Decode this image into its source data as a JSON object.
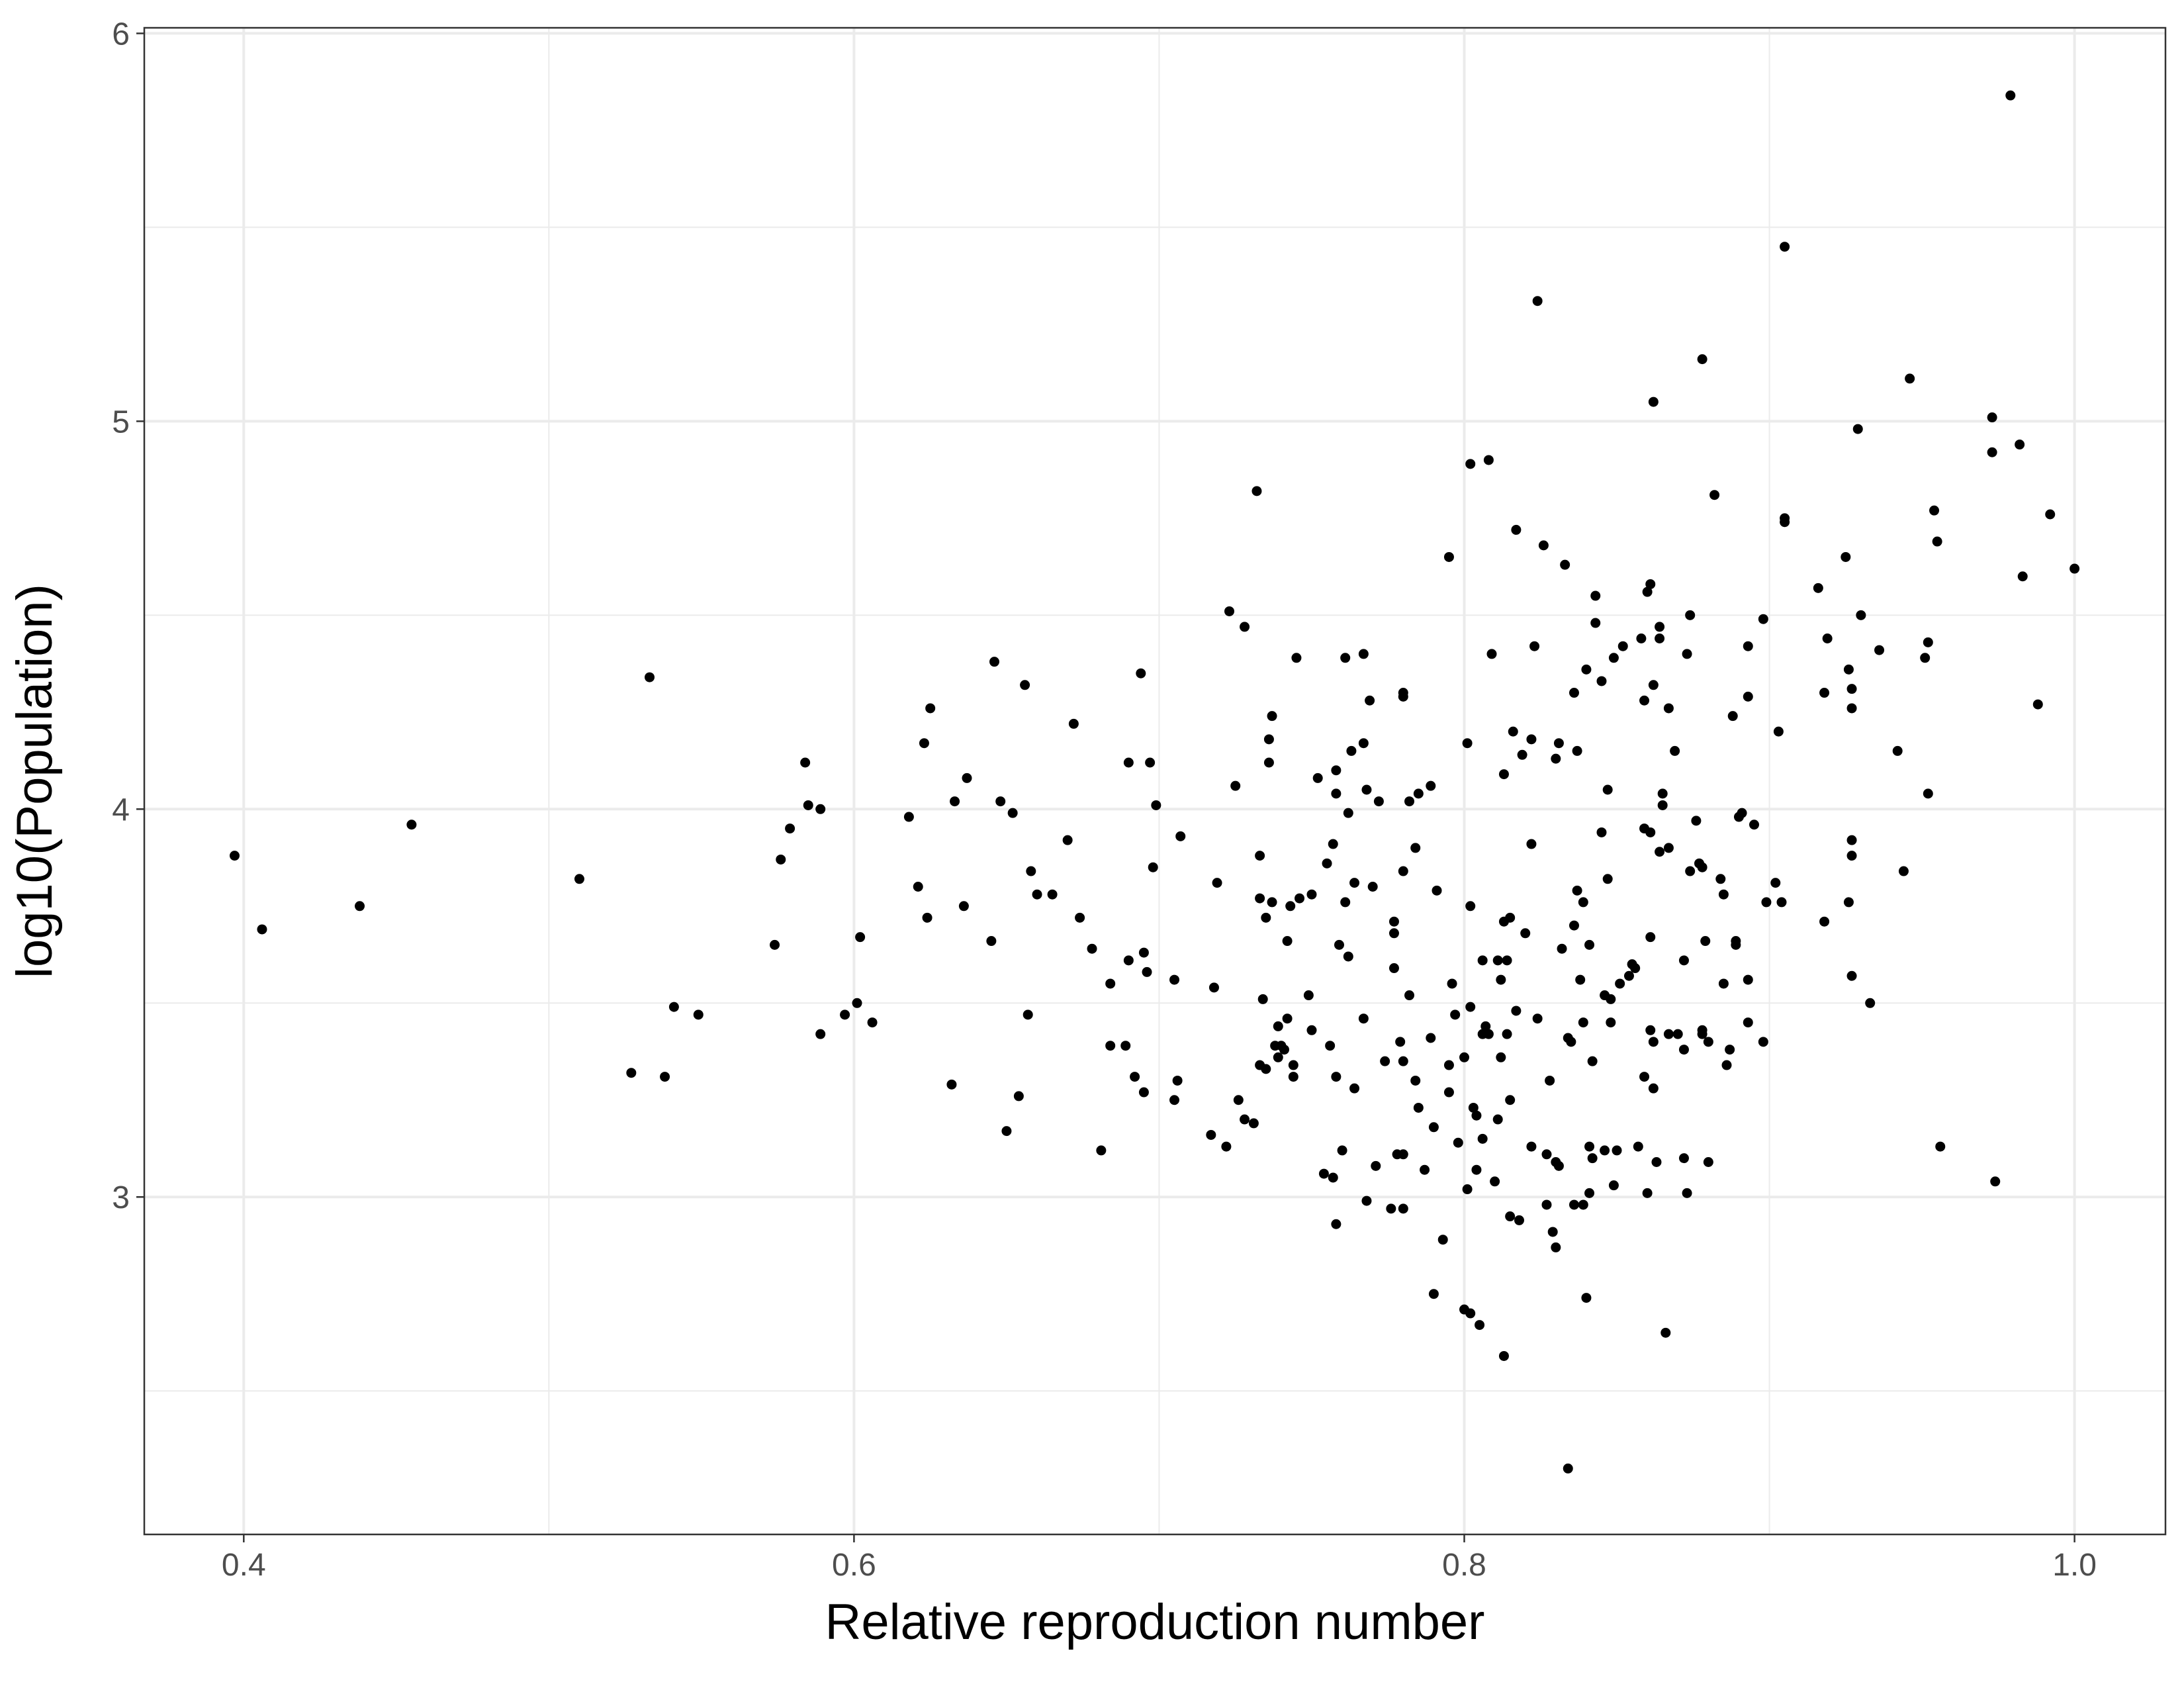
{
  "chart_data": {
    "type": "scatter",
    "x_label": "Relative reproduction number",
    "y_label": "log10(Population)",
    "color": "#000000",
    "grid": true,
    "xlim": [
      0.3674,
      1.0298
    ],
    "ylim": [
      2.13,
      6.0144
    ],
    "xticks": [
      0.4,
      0.6,
      0.8,
      {
        "value": 1,
        "label": "1.0"
      }
    ],
    "yticks": [
      3,
      4,
      5,
      6
    ],
    "x_minor_grid": [
      0.5,
      0.7,
      0.9
    ],
    "y_minor_grid": [
      2.5,
      3.5,
      4.5,
      5.5
    ],
    "x": [
      0.397,
      0.406,
      0.438,
      0.455,
      0.51,
      0.527,
      0.533,
      0.538,
      0.541,
      0.549,
      0.574,
      0.576,
      0.579,
      0.584,
      0.585,
      0.589,
      0.589,
      0.597,
      0.601,
      0.602,
      0.606,
      0.618,
      0.621,
      0.623,
      0.624,
      0.625,
      0.632,
      0.633,
      0.636,
      0.637,
      0.645,
      0.646,
      0.648,
      0.65,
      0.652,
      0.654,
      0.656,
      0.657,
      0.658,
      0.66,
      0.665,
      0.67,
      0.672,
      0.674,
      0.678,
      0.681,
      0.684,
      0.684,
      0.689,
      0.69,
      0.69,
      0.692,
      0.694,
      0.695,
      0.695,
      0.696,
      0.697,
      0.698,
      0.699,
      0.705,
      0.707,
      0.706,
      0.705,
      0.717,
      0.718,
      0.719,
      0.722,
      0.723,
      0.725,
      0.726,
      0.728,
      0.728,
      0.731,
      0.732,
      0.733,
      0.733,
      0.733,
      0.734,
      0.735,
      0.735,
      0.736,
      0.736,
      0.737,
      0.737,
      0.738,
      0.739,
      0.739,
      0.74,
      0.741,
      0.742,
      0.742,
      0.743,
      0.744,
      0.744,
      0.745,
      0.746,
      0.749,
      0.75,
      0.75,
      0.752,
      0.754,
      0.755,
      0.756,
      0.757,
      0.757,
      0.758,
      0.758,
      0.758,
      0.758,
      0.759,
      0.76,
      0.761,
      0.761,
      0.762,
      0.762,
      0.763,
      0.764,
      0.764,
      0.767,
      0.767,
      0.767,
      0.768,
      0.768,
      0.769,
      0.77,
      0.771,
      0.772,
      0.774,
      0.776,
      0.777,
      0.777,
      0.777,
      0.778,
      0.779,
      0.78,
      0.78,
      0.78,
      0.78,
      0.78,
      0.78,
      0.782,
      0.782,
      0.784,
      0.784,
      0.785,
      0.785,
      0.787,
      0.789,
      0.789,
      0.79,
      0.79,
      0.791,
      0.793,
      0.795,
      0.795,
      0.795,
      0.796,
      0.797,
      0.798,
      0.8,
      0.8,
      0.801,
      0.801,
      0.802,
      0.802,
      0.802,
      0.802,
      0.803,
      0.804,
      0.804,
      0.805,
      0.806,
      0.806,
      0.806,
      0.807,
      0.808,
      0.808,
      0.809,
      0.81,
      0.811,
      0.811,
      0.812,
      0.812,
      0.813,
      0.813,
      0.813,
      0.814,
      0.814,
      0.815,
      0.815,
      0.815,
      0.816,
      0.817,
      0.817,
      0.818,
      0.819,
      0.82,
      0.822,
      0.822,
      0.822,
      0.823,
      0.824,
      0.824,
      0.826,
      0.827,
      0.827,
      0.828,
      0.829,
      0.83,
      0.83,
      0.83,
      0.831,
      0.831,
      0.832,
      0.833,
      0.834,
      0.834,
      0.835,
      0.836,
      0.836,
      0.836,
      0.837,
      0.837,
      0.838,
      0.839,
      0.839,
      0.839,
      0.84,
      0.84,
      0.841,
      0.841,
      0.841,
      0.842,
      0.842,
      0.843,
      0.843,
      0.845,
      0.845,
      0.846,
      0.846,
      0.847,
      0.847,
      0.848,
      0.848,
      0.849,
      0.849,
      0.85,
      0.851,
      0.852,
      0.854,
      0.855,
      0.856,
      0.857,
      0.858,
      0.859,
      0.859,
      0.859,
      0.86,
      0.86,
      0.861,
      0.861,
      0.861,
      0.861,
      0.862,
      0.862,
      0.862,
      0.862,
      0.863,
      0.864,
      0.864,
      0.864,
      0.865,
      0.865,
      0.866,
      0.867,
      0.867,
      0.867,
      0.869,
      0.87,
      0.872,
      0.872,
      0.872,
      0.873,
      0.873,
      0.874,
      0.874,
      0.876,
      0.877,
      0.878,
      0.878,
      0.878,
      0.878,
      0.879,
      0.88,
      0.88,
      0.882,
      0.884,
      0.885,
      0.885,
      0.886,
      0.887,
      0.888,
      0.889,
      0.889,
      0.89,
      0.891,
      0.893,
      0.893,
      0.893,
      0.893,
      0.895,
      0.898,
      0.898,
      0.899,
      0.902,
      0.903,
      0.904,
      0.905,
      0.905,
      0.905,
      0.916,
      0.918,
      0.918,
      0.919,
      0.925,
      0.926,
      0.926,
      0.927,
      0.927,
      0.927,
      0.927,
      0.927,
      0.929,
      0.93,
      0.933,
      0.936,
      0.942,
      0.944,
      0.946,
      0.951,
      0.952,
      0.952,
      0.954,
      0.955,
      0.956,
      0.973,
      0.973,
      0.974,
      0.979,
      0.982,
      0.983,
      0.988,
      0.992,
      1.0
    ],
    "y": [
      3.88,
      3.69,
      3.75,
      3.96,
      3.82,
      3.32,
      4.34,
      3.31,
      3.49,
      3.47,
      3.65,
      3.87,
      3.95,
      4.12,
      4.01,
      4.0,
      3.42,
      3.47,
      3.5,
      3.67,
      3.45,
      3.98,
      3.8,
      4.17,
      3.72,
      4.26,
      3.29,
      4.02,
      3.75,
      4.08,
      3.66,
      4.38,
      4.02,
      3.17,
      3.99,
      3.26,
      4.32,
      3.47,
      3.84,
      3.78,
      3.78,
      3.92,
      4.22,
      3.72,
      3.64,
      3.12,
      3.39,
      3.55,
      3.39,
      3.61,
      4.12,
      3.31,
      4.35,
      3.63,
      3.27,
      3.58,
      4.12,
      3.85,
      4.01,
      3.56,
      3.93,
      3.3,
      3.25,
      3.16,
      3.54,
      3.81,
      3.13,
      4.51,
      4.06,
      3.25,
      4.47,
      3.2,
      3.19,
      4.82,
      3.88,
      3.77,
      3.34,
      3.51,
      3.72,
      3.33,
      4.18,
      4.12,
      4.24,
      3.76,
      3.39,
      3.44,
      3.36,
      3.39,
      3.38,
      3.66,
      3.46,
      3.75,
      3.34,
      3.31,
      4.39,
      3.77,
      3.52,
      3.78,
      3.43,
      4.08,
      3.06,
      3.86,
      3.39,
      3.91,
      3.05,
      4.1,
      4.04,
      2.93,
      3.31,
      3.65,
      3.12,
      3.76,
      4.39,
      3.62,
      3.99,
      4.15,
      3.81,
      3.28,
      3.46,
      4.4,
      4.17,
      4.05,
      2.99,
      4.28,
      3.8,
      3.08,
      4.02,
      3.35,
      2.97,
      3.59,
      3.68,
      3.71,
      3.11,
      3.4,
      3.11,
      2.97,
      3.84,
      4.29,
      3.35,
      4.3,
      3.52,
      4.02,
      3.3,
      3.9,
      4.04,
      3.23,
      3.07,
      3.41,
      4.06,
      3.18,
      2.75,
      3.79,
      2.89,
      4.65,
      3.34,
      3.27,
      3.55,
      3.47,
      3.14,
      2.71,
      3.36,
      3.02,
      4.17,
      3.75,
      4.89,
      3.49,
      2.7,
      3.23,
      3.07,
      3.21,
      2.67,
      3.61,
      3.42,
      3.15,
      3.44,
      4.9,
      3.42,
      4.4,
      3.04,
      3.2,
      3.61,
      3.36,
      3.56,
      2.59,
      3.71,
      4.09,
      3.42,
      3.61,
      3.72,
      2.95,
      3.25,
      4.2,
      3.48,
      4.72,
      2.94,
      4.14,
      3.68,
      4.18,
      3.91,
      3.13,
      4.42,
      3.46,
      5.31,
      4.68,
      3.11,
      2.98,
      3.3,
      2.91,
      3.09,
      4.13,
      2.87,
      4.17,
      3.08,
      3.64,
      4.63,
      3.41,
      2.3,
      3.4,
      3.7,
      4.3,
      2.98,
      4.15,
      3.79,
      3.56,
      3.45,
      3.76,
      2.98,
      2.74,
      4.36,
      3.01,
      3.65,
      3.13,
      3.35,
      3.1,
      4.48,
      4.55,
      4.33,
      3.94,
      3.52,
      3.12,
      3.82,
      4.05,
      3.51,
      3.45,
      3.03,
      4.39,
      3.12,
      3.55,
      4.42,
      3.57,
      3.6,
      3.59,
      3.13,
      4.44,
      4.28,
      3.95,
      3.31,
      3.01,
      4.56,
      4.58,
      3.94,
      3.67,
      3.43,
      3.4,
      4.32,
      5.05,
      3.28,
      3.09,
      4.44,
      4.47,
      3.89,
      4.04,
      4.01,
      2.65,
      3.42,
      3.9,
      4.26,
      4.15,
      3.42,
      3.38,
      3.61,
      3.1,
      3.01,
      4.4,
      4.5,
      3.84,
      3.97,
      3.86,
      3.43,
      5.16,
      3.85,
      3.42,
      3.66,
      3.09,
      3.4,
      4.81,
      3.82,
      3.55,
      3.78,
      3.34,
      3.38,
      4.24,
      3.66,
      3.65,
      3.98,
      3.99,
      3.45,
      3.56,
      4.29,
      4.42,
      3.96,
      3.4,
      4.49,
      3.76,
      3.81,
      4.2,
      3.76,
      5.45,
      4.75,
      4.74,
      4.57,
      3.71,
      4.3,
      4.44,
      4.65,
      3.76,
      4.36,
      4.31,
      3.88,
      3.92,
      4.26,
      3.57,
      4.98,
      4.5,
      3.5,
      4.41,
      4.15,
      3.84,
      5.11,
      4.39,
      4.43,
      4.04,
      4.77,
      4.69,
      3.13,
      5.01,
      4.92,
      3.04,
      5.84,
      4.94,
      4.6,
      4.27,
      4.76,
      4.62
    ]
  }
}
